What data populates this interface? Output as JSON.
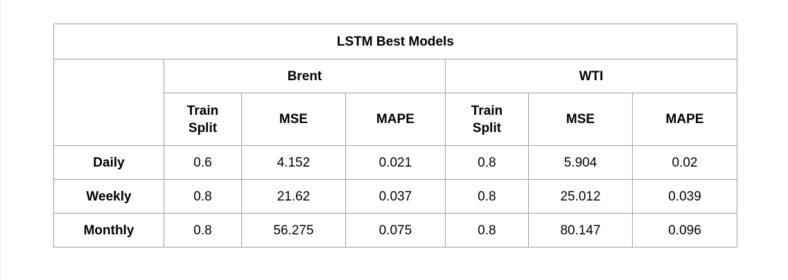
{
  "table": {
    "title": "LSTM Best Models",
    "groups": [
      "Brent",
      "WTI"
    ],
    "metric_headers": [
      "Train\nSplit",
      "MSE",
      "MAPE",
      "Train\nSplit",
      "MSE",
      "MAPE"
    ],
    "rows": [
      {
        "label": "Daily",
        "cells": [
          "0.6",
          "4.152",
          "0.021",
          "0.8",
          "5.904",
          "0.02"
        ]
      },
      {
        "label": "Weekly",
        "cells": [
          "0.8",
          "21.62",
          "0.037",
          "0.8",
          "25.012",
          "0.039"
        ]
      },
      {
        "label": "Monthly",
        "cells": [
          "0.8",
          "56.275",
          "0.075",
          "0.8",
          "80.147",
          "0.096"
        ]
      }
    ]
  }
}
